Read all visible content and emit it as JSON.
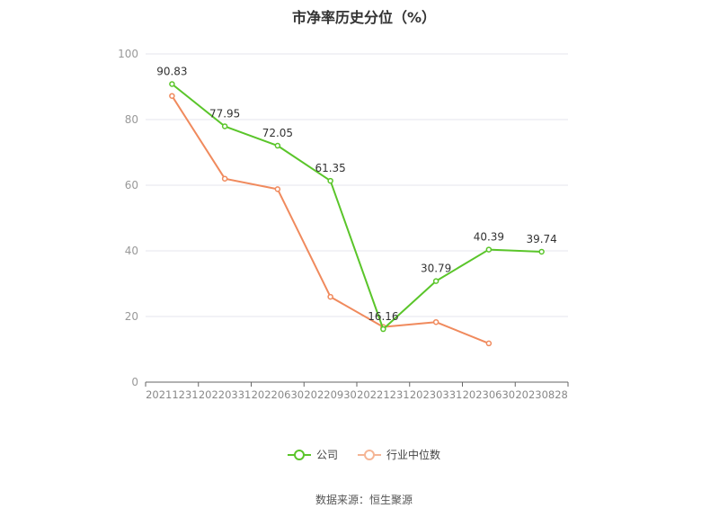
{
  "title": "市净率历史分位（%）",
  "source": "数据来源：恒生聚源",
  "colors": {
    "company": "#5ac52a",
    "industry": "#f08a5d",
    "grid": "#e6e6ee",
    "axis": "#999999"
  },
  "legend": {
    "company_label": "公司",
    "industry_label": "行业中位数"
  },
  "chart_data": {
    "type": "line",
    "title": "市净率历史分位（%）",
    "categories": [
      "20211231",
      "20220331",
      "20220630",
      "20220930",
      "20221231",
      "20230331",
      "20230630",
      "20230828"
    ],
    "ylim": [
      0,
      100
    ],
    "yticks": [
      0,
      20,
      40,
      60,
      80,
      100
    ],
    "grid": true,
    "legend_position": "bottom",
    "series": [
      {
        "name": "公司",
        "values": [
          90.83,
          77.95,
          72.05,
          61.35,
          16.16,
          30.79,
          40.39,
          39.74
        ],
        "labels": [
          "90.83",
          "77.95",
          "72.05",
          "61.35",
          "16.16",
          "30.79",
          "40.39",
          "39.74"
        ]
      },
      {
        "name": "行业中位数",
        "values": [
          87.2,
          62.0,
          58.8,
          26.0,
          16.8,
          18.3,
          11.8,
          null
        ]
      }
    ]
  }
}
